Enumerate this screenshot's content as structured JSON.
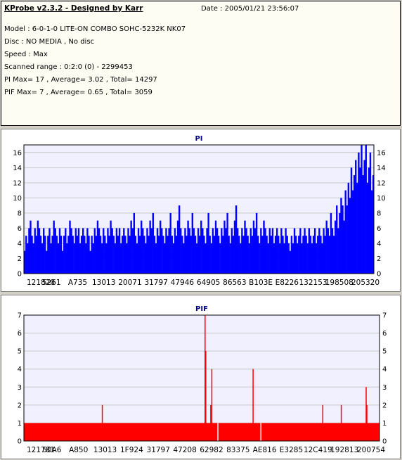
{
  "info": {
    "title": "KProbe v2.3.2 - Designed by Karr",
    "date": "Date : 2005/01/21 23:56:07",
    "lines": [
      "Model : 6-0-1-0 LITE-ON COMBO SOHC-5232K NK07",
      "Disc : NO MEDIA , No disc",
      "Speed : Max",
      "Scanned range : 0:2:0 (0) - 2299453",
      "PI Max= 17 , Average= 3.02 , Total= 14297",
      "PIF Max= 7 , Average= 0.65 , Total= 3059"
    ]
  },
  "colors": {
    "pi_bar": "#0000ff",
    "pif_bar": "#ff0000",
    "plot_bg": "#f0f0ff",
    "grid": "#c8c8c8",
    "title": "#000080"
  },
  "chart_data": [
    {
      "type": "bar",
      "title": "PI",
      "xlabel": "",
      "ylabel": "",
      "ylim": [
        0,
        17
      ],
      "yticks": [
        0,
        2,
        4,
        6,
        8,
        10,
        12,
        14,
        16
      ],
      "xtick_labels": [
        "121820",
        "5261",
        "A735",
        "13013",
        "20071",
        "31797",
        "47946",
        "64905",
        "86563",
        "B103E",
        "E8226",
        "132153",
        "198508",
        "205320"
      ],
      "grid": true,
      "values": [
        3,
        5,
        4,
        6,
        7,
        5,
        4,
        6,
        5,
        7,
        6,
        5,
        4,
        6,
        5,
        3,
        5,
        6,
        4,
        5,
        7,
        6,
        5,
        4,
        6,
        5,
        3,
        5,
        6,
        4,
        5,
        7,
        6,
        5,
        4,
        6,
        5,
        6,
        4,
        5,
        6,
        5,
        4,
        6,
        5,
        3,
        5,
        4,
        6,
        5,
        7,
        6,
        5,
        4,
        6,
        5,
        4,
        6,
        5,
        7,
        6,
        5,
        4,
        6,
        5,
        6,
        4,
        5,
        6,
        5,
        4,
        6,
        5,
        7,
        6,
        8,
        5,
        4,
        6,
        5,
        7,
        6,
        5,
        4,
        6,
        5,
        7,
        6,
        8,
        5,
        4,
        6,
        5,
        7,
        6,
        5,
        4,
        6,
        5,
        6,
        8,
        5,
        4,
        6,
        5,
        7,
        9,
        6,
        5,
        4,
        6,
        5,
        7,
        6,
        5,
        8,
        6,
        5,
        4,
        6,
        5,
        7,
        6,
        5,
        4,
        6,
        8,
        5,
        4,
        6,
        5,
        7,
        6,
        5,
        4,
        6,
        5,
        7,
        6,
        8,
        5,
        4,
        6,
        5,
        7,
        9,
        6,
        5,
        4,
        6,
        5,
        7,
        6,
        5,
        4,
        6,
        5,
        7,
        6,
        8,
        5,
        4,
        6,
        5,
        7,
        6,
        5,
        4,
        6,
        5,
        6,
        4,
        5,
        6,
        5,
        4,
        6,
        5,
        4,
        6,
        5,
        4,
        3,
        5,
        4,
        6,
        5,
        4,
        5,
        6,
        4,
        5,
        6,
        5,
        4,
        6,
        5,
        4,
        5,
        6,
        4,
        5,
        6,
        5,
        4,
        6,
        5,
        7,
        6,
        5,
        8,
        6,
        5,
        7,
        9,
        6,
        8,
        10,
        9,
        7,
        11,
        9,
        12,
        10,
        14,
        11,
        13,
        15,
        12,
        16,
        14,
        17,
        13,
        15,
        17,
        12,
        14,
        16,
        11,
        13
      ]
    },
    {
      "type": "bar",
      "title": "PIF",
      "xlabel": "",
      "ylabel": "",
      "ylim": [
        0,
        7
      ],
      "yticks": [
        0,
        1,
        2,
        3,
        4,
        5,
        6,
        7
      ],
      "xtick_labels": [
        "121781",
        "50A6",
        "A850",
        "13013",
        "1F924",
        "31797",
        "47208",
        "62982",
        "83375",
        "AE816",
        "E3285",
        "12C419",
        "192813",
        "200754"
      ],
      "grid": true,
      "base_value": 1,
      "spikes": [
        {
          "x": 0.219,
          "value": 2
        },
        {
          "x": 0.508,
          "value": 7
        },
        {
          "x": 0.51,
          "value": 5
        },
        {
          "x": 0.527,
          "value": 4
        },
        {
          "x": 0.524,
          "value": 2
        },
        {
          "x": 0.643,
          "value": 4
        },
        {
          "x": 0.839,
          "value": 2
        },
        {
          "x": 0.891,
          "value": 2
        },
        {
          "x": 0.961,
          "value": 3
        },
        {
          "x": 0.963,
          "value": 2
        }
      ],
      "gaps": [
        0.544,
        0.665
      ]
    }
  ]
}
